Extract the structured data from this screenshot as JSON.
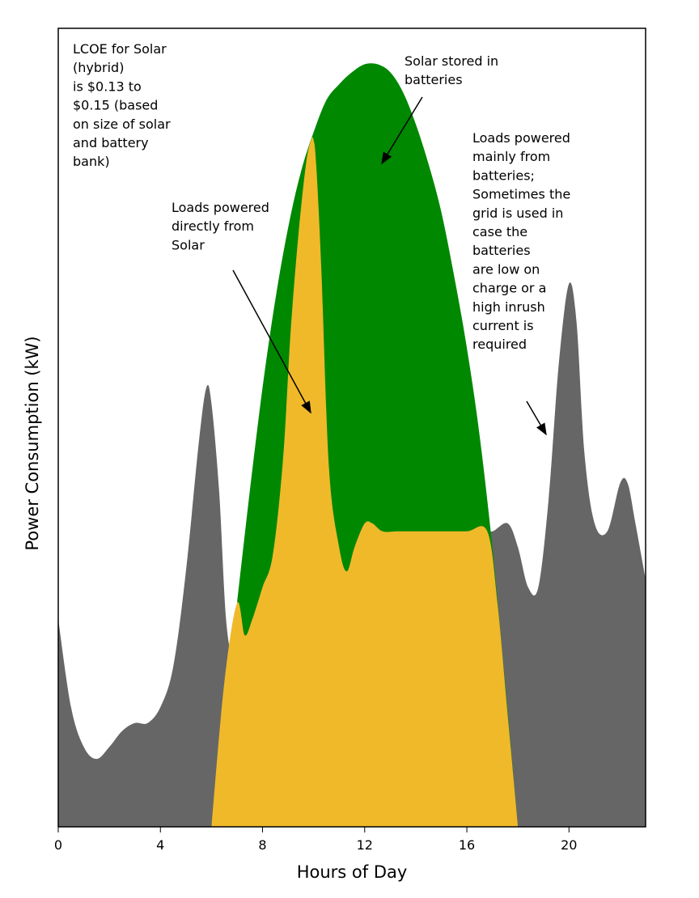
{
  "chart_data": {
    "type": "area",
    "title": "",
    "xlabel": "Hours of Day",
    "ylabel": "Power Consumption (kW)",
    "xlim": [
      0,
      23
    ],
    "ylim": [
      0,
      100
    ],
    "x_ticks": [
      0,
      4,
      8,
      12,
      16,
      20
    ],
    "grid": false,
    "legend": "none",
    "colors": {
      "total_load": "#666666",
      "solar_stored": "#008800",
      "solar_direct": "#f0b929",
      "axes": "#000000"
    },
    "series": [
      {
        "key": "total_load",
        "x": [
          0,
          0.5,
          1,
          1.5,
          2,
          2.5,
          3,
          3.5,
          4,
          4.5,
          5,
          5.5,
          5.8,
          6,
          6.3,
          6.6,
          7,
          7.5,
          8,
          8.5,
          9,
          9.3,
          9.6,
          10,
          10.2,
          10.5,
          11,
          11.3,
          11.6,
          12,
          12.5,
          13,
          14,
          15,
          16,
          16.5,
          17,
          17.6,
          18,
          18.4,
          18.8,
          19.2,
          19.6,
          20,
          20.3,
          20.6,
          21,
          21.5,
          22,
          22.3,
          22.6,
          23
        ],
        "values": [
          26,
          15,
          10,
          8.5,
          10,
          12,
          13,
          13,
          15,
          20,
          32,
          48,
          55,
          53,
          42,
          25,
          20,
          20,
          20,
          20,
          20,
          20,
          20,
          20,
          20,
          20,
          20,
          20,
          20,
          20,
          20,
          20,
          20,
          20,
          37,
          37,
          37,
          38,
          35,
          30,
          30,
          41,
          58,
          68,
          63,
          47,
          38,
          37,
          43,
          43,
          38,
          31
        ]
      },
      {
        "key": "solar_stored",
        "x": [
          6,
          7,
          7.5,
          8,
          8.5,
          9,
          9.5,
          10,
          10.5,
          11,
          11.5,
          12,
          12.5,
          13,
          13.5,
          14,
          14.5,
          15,
          15.5,
          16,
          16.5,
          17,
          17.5,
          18
        ],
        "values": [
          0,
          28,
          42,
          55,
          66,
          75,
          82,
          87,
          91,
          93,
          94.5,
          95.5,
          95.5,
          94.5,
          92,
          88,
          83,
          77,
          69,
          60,
          49,
          35,
          18,
          0
        ]
      },
      {
        "key": "solar_direct",
        "x": [
          6,
          6.5,
          7,
          7.3,
          7.6,
          8,
          8.4,
          8.8,
          9.1,
          9.4,
          9.7,
          9.9,
          10,
          10.1,
          10.3,
          10.6,
          11,
          11.3,
          11.6,
          12,
          12.3,
          12.7,
          13.3,
          14,
          15,
          16,
          16.8,
          17.2,
          17.6,
          18
        ],
        "values": [
          0,
          18,
          28,
          24,
          26,
          30,
          34,
          46,
          62,
          74,
          83,
          86,
          86,
          83,
          70,
          45,
          35,
          32,
          35,
          38,
          38,
          37,
          37,
          37,
          37,
          37,
          37,
          28,
          14,
          0
        ]
      }
    ],
    "annotations": [
      {
        "key": "lcoe",
        "lines": [
          "LCOE for Solar",
          "(hybrid)",
          "is $0.13 to",
          "$0.15 (based",
          "on size of solar",
          "and battery",
          "bank)"
        ]
      },
      {
        "key": "stored",
        "lines": [
          "Solar stored in",
          "batteries"
        ]
      },
      {
        "key": "direct",
        "lines": [
          "Loads powered",
          "directly from",
          "Solar"
        ]
      },
      {
        "key": "night",
        "lines": [
          "Loads powered",
          "mainly from",
          "batteries;",
          "Sometimes the",
          "grid is used in",
          "case the",
          "batteries",
          "are low on",
          "charge or a",
          "high inrush",
          "current is",
          "required"
        ]
      }
    ]
  }
}
